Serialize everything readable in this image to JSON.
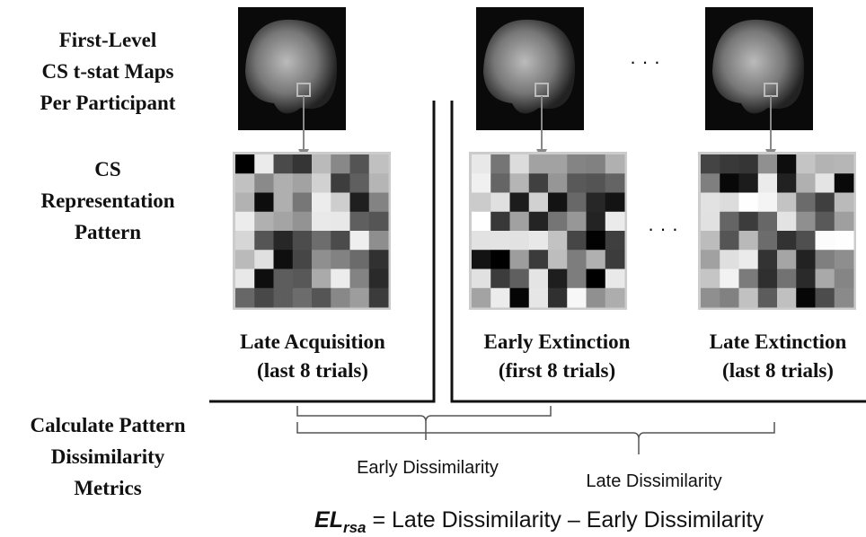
{
  "row_labels": [
    [
      "First-Level",
      "CS t-stat Maps",
      "Per Participant"
    ],
    [
      "CS",
      "Representation",
      "Pattern"
    ],
    [
      "Calculate Pattern",
      "Dissimilarity",
      "Metrics"
    ]
  ],
  "conditions": [
    {
      "name": "Late Acquisition",
      "trials": "(last 8 trials)"
    },
    {
      "name": "Early Extinction",
      "trials": "(first 8 trials)"
    },
    {
      "name": "Late Extinction",
      "trials": "(last 8 trials)"
    }
  ],
  "ellipsis": "· · ·",
  "brackets": [
    "Early Dissimilarity",
    "Late Dissimilarity"
  ],
  "formula": {
    "symbol": "EL",
    "subscript": "rsa",
    "rest": " = Late Dissimilarity – Early Dissimilarity"
  }
}
